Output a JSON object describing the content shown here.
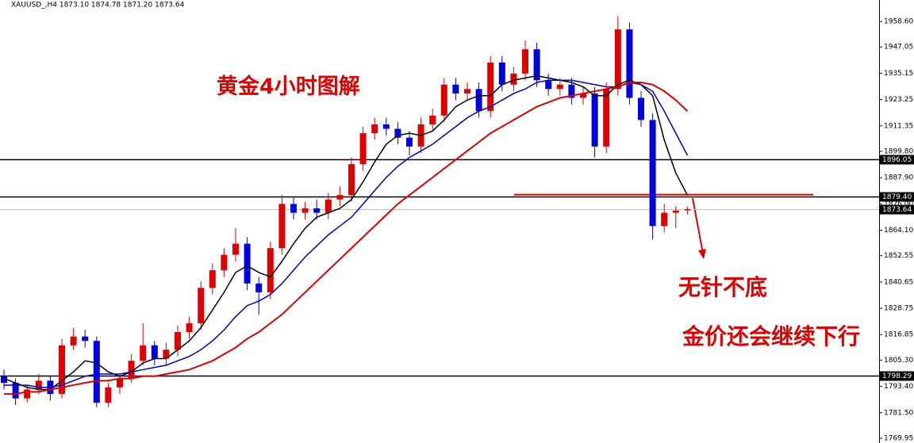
{
  "chart_data": {
    "type": "candlestick",
    "title": "XAUUSD_,H4  1873.10 1874.78 1871.20 1873.64",
    "annotations": [
      "黄金4小时图解",
      "无针不底",
      "金价还会继续下行"
    ],
    "up_color": "#e00000",
    "down_color": "#0000e0",
    "open": [
      1798,
      1795,
      1788,
      1792,
      1796,
      1790,
      1812,
      1816,
      1814,
      1786,
      1793,
      1797,
      1805,
      1812,
      1806,
      1810,
      1818,
      1822,
      1838,
      1846,
      1853,
      1858,
      1840,
      1836,
      1856,
      1876,
      1872,
      1874,
      1872,
      1878,
      1880,
      1894,
      1908,
      1912,
      1910,
      1906,
      1902,
      1912,
      1916,
      1930,
      1926,
      1928,
      1918,
      1940,
      1930,
      1935,
      1946,
      1932,
      1928,
      1930,
      1924,
      1926,
      1902,
      1928,
      1955,
      1924,
      1914,
      1866,
      1872,
      1873.1
    ],
    "high": [
      1801,
      1797,
      1794,
      1799,
      1798,
      1815,
      1820,
      1819,
      1816,
      1795,
      1799,
      1808,
      1822,
      1814,
      1813,
      1821,
      1825,
      1841,
      1849,
      1856,
      1865,
      1861,
      1843,
      1859,
      1880,
      1879,
      1877,
      1878,
      1881,
      1884,
      1897,
      1911,
      1915,
      1915,
      1913,
      1909,
      1915,
      1919,
      1933,
      1933,
      1931,
      1931,
      1943,
      1943,
      1938,
      1950,
      1949,
      1935,
      1933,
      1933,
      1929,
      1929,
      1931,
      1961,
      1958,
      1927,
      1917,
      1876,
      1875,
      1874.78
    ],
    "low": [
      1792,
      1785,
      1786,
      1790,
      1787,
      1788,
      1810,
      1811,
      1784,
      1784,
      1790,
      1795,
      1803,
      1803,
      1803,
      1807,
      1815,
      1819,
      1835,
      1843,
      1850,
      1837,
      1826,
      1833,
      1853,
      1869,
      1869,
      1869,
      1869,
      1875,
      1877,
      1891,
      1905,
      1907,
      1903,
      1898,
      1899,
      1909,
      1913,
      1923,
      1923,
      1915,
      1915,
      1927,
      1927,
      1932,
      1929,
      1925,
      1925,
      1921,
      1921,
      1897,
      1899,
      1925,
      1921,
      1911,
      1860,
      1863,
      1865,
      1871.2
    ],
    "close": [
      1795,
      1788,
      1792,
      1796,
      1790,
      1812,
      1816,
      1814,
      1786,
      1793,
      1797,
      1805,
      1812,
      1806,
      1810,
      1818,
      1822,
      1838,
      1846,
      1853,
      1858,
      1840,
      1836,
      1856,
      1876,
      1872,
      1874,
      1872,
      1878,
      1880,
      1894,
      1908,
      1912,
      1910,
      1906,
      1902,
      1912,
      1916,
      1930,
      1926,
      1928,
      1918,
      1940,
      1930,
      1935,
      1946,
      1932,
      1928,
      1930,
      1924,
      1926,
      1902,
      1928,
      1955,
      1924,
      1914,
      1866,
      1872,
      1873,
      1873.64
    ],
    "series": [
      {
        "color": "#000000",
        "values": [
          1797,
          1795,
          1793,
          1792,
          1792,
          1796,
          1800,
          1805,
          1804,
          1800,
          1798,
          1800,
          1804,
          1806,
          1806,
          1810,
          1814,
          1820,
          1828,
          1836,
          1845,
          1848,
          1845,
          1843,
          1850,
          1858,
          1865,
          1870,
          1872,
          1874,
          1878,
          1886,
          1895,
          1903,
          1907,
          1908,
          1907,
          1909,
          1914,
          1920,
          1923,
          1925,
          1925,
          1930,
          1932,
          1933,
          1934,
          1933,
          1932,
          1931,
          1929,
          1925,
          1925,
          1930,
          1932,
          1930,
          1925,
          1905,
          1890,
          1880
        ]
      },
      {
        "color": "#0000c8",
        "values": [
          1794,
          1794,
          1794,
          1793,
          1793,
          1794,
          1796,
          1798,
          1799,
          1799,
          1799,
          1800,
          1801,
          1802,
          1803,
          1805,
          1807,
          1810,
          1814,
          1819,
          1825,
          1830,
          1832,
          1835,
          1840,
          1846,
          1852,
          1857,
          1862,
          1866,
          1870,
          1876,
          1882,
          1888,
          1893,
          1897,
          1900,
          1903,
          1907,
          1911,
          1915,
          1918,
          1920,
          1923,
          1926,
          1928,
          1931,
          1932,
          1932,
          1932,
          1931,
          1930,
          1929,
          1929,
          1931,
          1930,
          1927,
          1918,
          1908,
          1898
        ]
      },
      {
        "color": "#e00000",
        "values": [
          1790,
          1790,
          1791,
          1791,
          1792,
          1793,
          1794,
          1795,
          1796,
          1796,
          1797,
          1797,
          1798,
          1798,
          1799,
          1800,
          1801,
          1803,
          1805,
          1808,
          1811,
          1815,
          1818,
          1822,
          1826,
          1831,
          1836,
          1841,
          1846,
          1851,
          1856,
          1861,
          1866,
          1871,
          1876,
          1880,
          1884,
          1888,
          1892,
          1896,
          1900,
          1904,
          1908,
          1911,
          1914,
          1917,
          1920,
          1922,
          1924,
          1925,
          1926,
          1927,
          1928,
          1929,
          1931,
          1931,
          1930,
          1927,
          1923,
          1918
        ]
      }
    ],
    "hlines": [
      {
        "value": 1896.05,
        "label": "1896.05",
        "color": "#000000"
      },
      {
        "value": 1879.4,
        "label": "1879.40",
        "color": "#000000"
      },
      {
        "value": 1798.29,
        "label": "1798.29",
        "color": "#000000"
      },
      {
        "value": 1873.64,
        "label": "1873.64",
        "color": "#c0c0c0"
      }
    ],
    "red_level": {
      "value": 1880.2,
      "color": "#e00000"
    },
    "ylim": [
      1767.8,
      1968.3
    ],
    "yticks": [
      {
        "value": 1958.6,
        "label": "1958.60"
      },
      1947.05,
      1935.15,
      1923.25,
      1911.35,
      {
        "value": 1899.8,
        "label": "1899.80"
      },
      {
        "value": 1887.9,
        "label": "1887.90"
      },
      {
        "value": 1876,
        "label": "1876.00"
      },
      {
        "value": 1864.1,
        "label": "1864.10"
      },
      1852.55,
      1840.65,
      1828.75,
      1816.85,
      {
        "value": 1805.3,
        "label": "1805.30"
      },
      {
        "value": 1793.4,
        "label": "1793.40"
      },
      {
        "value": 1781.5,
        "label": "1781.50"
      },
      1769.95
    ]
  }
}
